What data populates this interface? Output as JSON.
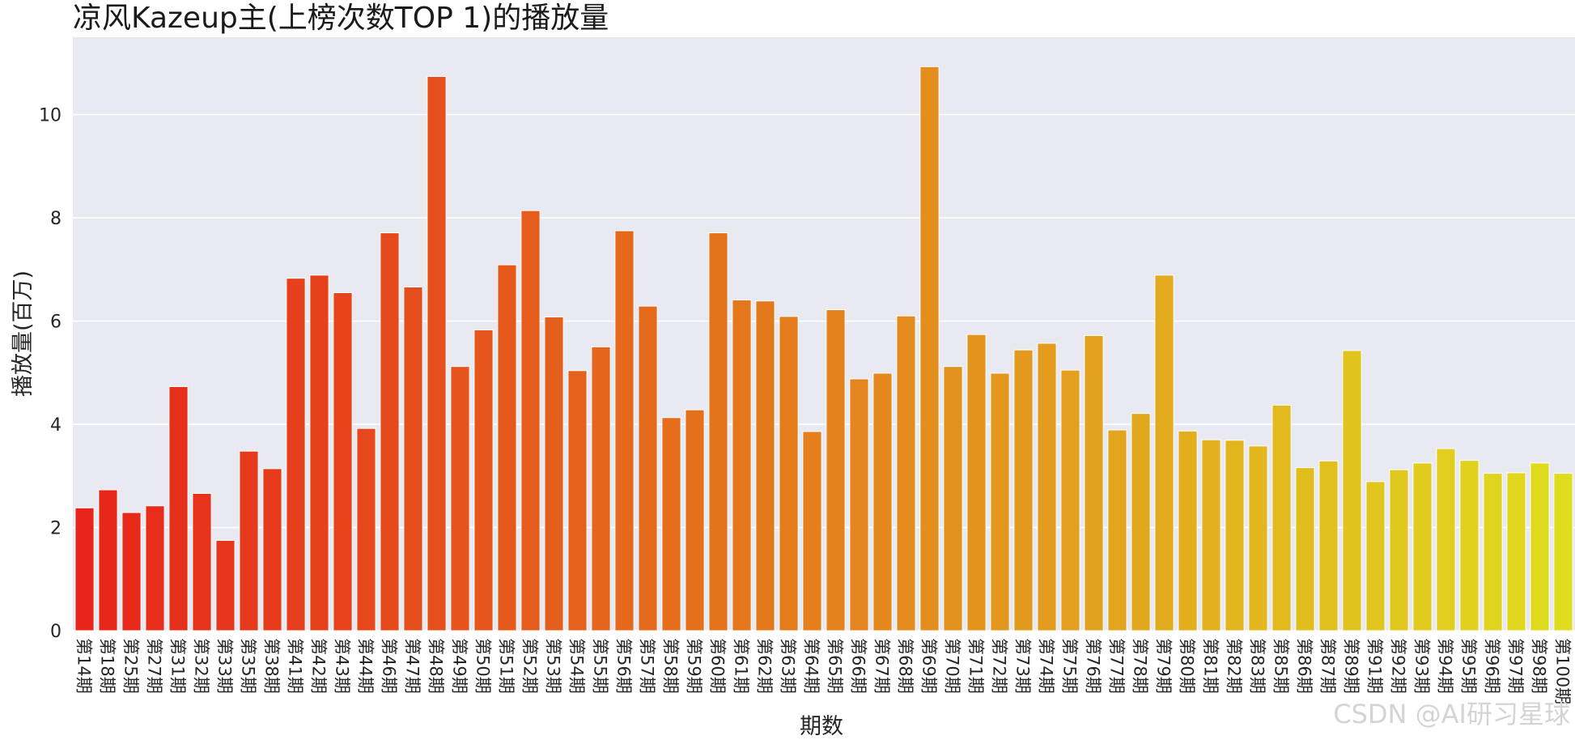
{
  "chart_data": {
    "type": "bar",
    "title": "凉风Kazeup主(上榜次数TOP 1)的播放量",
    "xlabel": "期数",
    "ylabel": "播放量(百万)",
    "ylim": [
      0,
      11.5
    ],
    "yticks": [
      0,
      2,
      4,
      6,
      8,
      10
    ],
    "grid": true,
    "legend": "none",
    "color_gradient": [
      "#e8241b",
      "#e0dd1e"
    ],
    "background": "#e9e9f1",
    "categories": [
      "第14期",
      "第18期",
      "第25期",
      "第27期",
      "第31期",
      "第32期",
      "第33期",
      "第35期",
      "第38期",
      "第41期",
      "第42期",
      "第43期",
      "第44期",
      "第46期",
      "第47期",
      "第48期",
      "第49期",
      "第50期",
      "第51期",
      "第52期",
      "第53期",
      "第54期",
      "第55期",
      "第56期",
      "第57期",
      "第58期",
      "第59期",
      "第60期",
      "第61期",
      "第62期",
      "第63期",
      "第64期",
      "第65期",
      "第66期",
      "第67期",
      "第68期",
      "第69期",
      "第70期",
      "第71期",
      "第72期",
      "第73期",
      "第74期",
      "第75期",
      "第76期",
      "第77期",
      "第78期",
      "第79期",
      "第80期",
      "第81期",
      "第82期",
      "第83期",
      "第85期",
      "第86期",
      "第87期",
      "第89期",
      "第91期",
      "第92期",
      "第93期",
      "第94期",
      "第95期",
      "第96期",
      "第97期",
      "第98期",
      "第100期"
    ],
    "values": [
      2.38,
      2.73,
      2.29,
      2.42,
      4.73,
      2.66,
      1.75,
      3.48,
      3.14,
      6.83,
      6.89,
      6.55,
      3.92,
      7.71,
      6.66,
      10.74,
      5.12,
      5.83,
      7.09,
      8.14,
      6.08,
      5.04,
      5.5,
      7.75,
      6.29,
      4.13,
      4.28,
      7.71,
      6.41,
      6.39,
      6.09,
      3.86,
      6.22,
      4.88,
      4.99,
      6.1,
      10.93,
      5.12,
      5.74,
      4.99,
      5.44,
      5.57,
      5.05,
      5.72,
      3.89,
      4.21,
      6.89,
      3.87,
      3.7,
      3.69,
      3.58,
      4.37,
      3.16,
      3.29,
      5.43,
      2.89,
      3.12,
      3.25,
      3.53,
      3.3,
      3.05,
      3.06,
      3.25,
      3.05
    ]
  },
  "watermark": "CSDN @AI研习星球"
}
